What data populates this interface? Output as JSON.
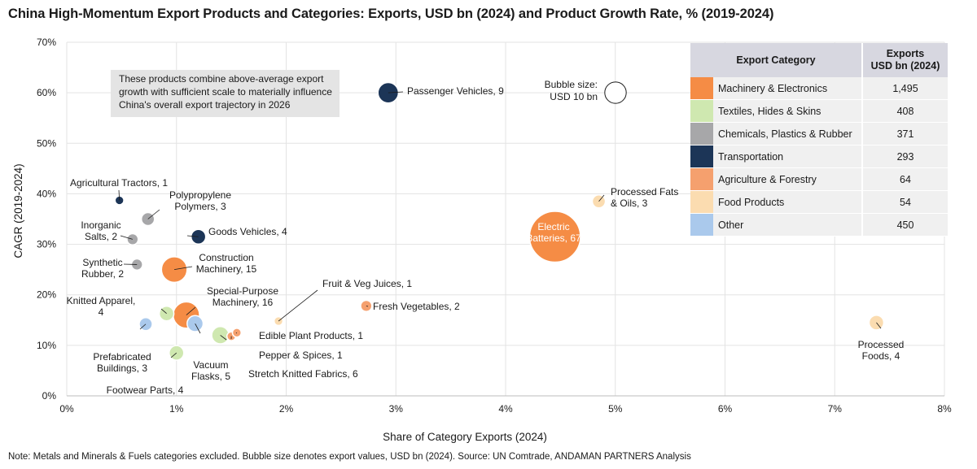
{
  "title": "China High-Momentum Export Products and Categories: Exports, USD bn (2024) and Product Growth Rate, % (2019-2024)",
  "note": "Note: Metals and Minerals & Fuels categories excluded. Bubble size denotes export values, USD bn (2024). Source: UN Comtrade, ANDAMAN PARTNERS Analysis",
  "annotation": [
    "These products combine above-average export",
    "growth with sufficient scale to materially influence",
    "China's overall export trajectory in 2026"
  ],
  "bubble_key": [
    "Bubble size:",
    "USD 10 bn"
  ],
  "legend": {
    "header_category": "Export Category",
    "header_exports": [
      "Exports",
      "USD bn (2024)"
    ],
    "rows": [
      {
        "category": "Machinery & Electronics",
        "exports": "1,495",
        "color": "#f58c45"
      },
      {
        "category": "Textiles, Hides & Skins",
        "exports": "408",
        "color": "#cfe8b0"
      },
      {
        "category": "Chemicals, Plastics & Rubber",
        "exports": "371",
        "color": "#a7a7a9"
      },
      {
        "category": "Transportation",
        "exports": "293",
        "color": "#1c3557"
      },
      {
        "category": "Agriculture & Forestry",
        "exports": "64",
        "color": "#f5a06e"
      },
      {
        "category": "Food Products",
        "exports": "54",
        "color": "#fbdcb0"
      },
      {
        "category": "Other",
        "exports": "450",
        "color": "#aac9ec"
      }
    ]
  },
  "chart_data": {
    "type": "scatter",
    "xlabel": "Share of Category Exports (2024)",
    "ylabel": "CAGR (2019-2024)",
    "xlim": [
      0,
      8
    ],
    "ylim": [
      0,
      70
    ],
    "xticks": [
      "0%",
      "1%",
      "2%",
      "3%",
      "4%",
      "5%",
      "6%",
      "7%",
      "8%"
    ],
    "yticks": [
      "0%",
      "10%",
      "20%",
      "30%",
      "40%",
      "50%",
      "60%",
      "70%"
    ],
    "grid": "vertical and horizontal",
    "points": [
      {
        "label": [
          "Passenger Vehicles, 9"
        ],
        "x": 2.93,
        "y": 60,
        "size": 9,
        "color": "#1c3557"
      },
      {
        "label": [
          "Electric",
          "Batteries, 67"
        ],
        "x": 4.45,
        "y": 31.5,
        "size": 67,
        "color": "#f58c45"
      },
      {
        "label": [
          "Processed Fats",
          "& Oils, 3"
        ],
        "x": 4.85,
        "y": 38.5,
        "size": 3,
        "color": "#fbdcb0"
      },
      {
        "label": [
          "Processed",
          "Foods, 4"
        ],
        "x": 7.38,
        "y": 14.5,
        "size": 4,
        "color": "#fbdcb0"
      },
      {
        "label": [
          "Agricultural Tractors, 1"
        ],
        "x": 0.48,
        "y": 38.7,
        "size": 1,
        "color": "#1c3557"
      },
      {
        "label": [
          "Polypropylene",
          "Polymers, 3"
        ],
        "x": 0.74,
        "y": 35,
        "size": 3,
        "color": "#a7a7a9"
      },
      {
        "label": [
          "Inorganic",
          "Salts, 2"
        ],
        "x": 0.6,
        "y": 31,
        "size": 2,
        "color": "#a7a7a9"
      },
      {
        "label": [
          "Goods Vehicles, 4"
        ],
        "x": 1.2,
        "y": 31.5,
        "size": 4,
        "color": "#1c3557"
      },
      {
        "label": [
          "Synthetic",
          "Rubber, 2"
        ],
        "x": 0.64,
        "y": 26,
        "size": 2,
        "color": "#a7a7a9"
      },
      {
        "label": [
          "Construction",
          "Machinery, 15"
        ],
        "x": 0.98,
        "y": 25,
        "size": 15,
        "color": "#f58c45"
      },
      {
        "label": [
          "Special-Purpose",
          "Machinery, 16"
        ],
        "x": 1.09,
        "y": 16,
        "size": 16,
        "color": "#f58c45"
      },
      {
        "label": [
          "Knitted Apparel,",
          "4"
        ],
        "x": 0.91,
        "y": 16.3,
        "size": 4,
        "color": "#cfe8b0"
      },
      {
        "label": [
          "Prefabricated",
          "Buildings, 3"
        ],
        "x": 0.72,
        "y": 14.2,
        "size": 3,
        "color": "#aac9ec"
      },
      {
        "label": [
          "Vacuum",
          "Flasks, 5"
        ],
        "x": 1.17,
        "y": 14.3,
        "size": 5,
        "color": "#aac9ec"
      },
      {
        "label": [
          "Footwear Parts, 4"
        ],
        "x": 1.0,
        "y": 8.5,
        "size": 4,
        "color": "#cfe8b0"
      },
      {
        "label": [
          "Stretch Knitted Fabrics, 6"
        ],
        "x": 1.4,
        "y": 12,
        "size": 6,
        "color": "#cfe8b0"
      },
      {
        "label": [
          "Pepper & Spices, 1"
        ],
        "x": 1.5,
        "y": 11.8,
        "size": 1,
        "color": "#f5a06e"
      },
      {
        "label": [
          "Edible Plant Products, 1"
        ],
        "x": 1.55,
        "y": 12.5,
        "size": 1,
        "color": "#f5a06e"
      },
      {
        "label": [
          "Fruit & Veg Juices, 1"
        ],
        "x": 1.93,
        "y": 14.8,
        "size": 1,
        "color": "#fbdcb0"
      },
      {
        "label": [
          "Fresh Vegetables, 2"
        ],
        "x": 2.73,
        "y": 17.8,
        "size": 2,
        "color": "#f5a06e"
      }
    ]
  }
}
